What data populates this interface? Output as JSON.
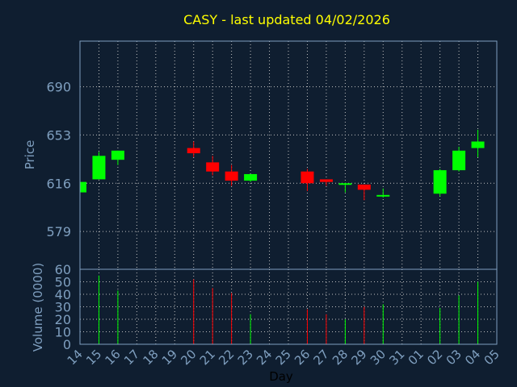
{
  "chart_data": {
    "type": "candlestick",
    "title": "CASY - last updated 04/02/2026",
    "xlabel": "Day",
    "price_panel": {
      "ylabel": "Price",
      "yticks": [
        579,
        616,
        653,
        690
      ],
      "ylim": [
        550,
        725
      ]
    },
    "volume_panel": {
      "ylabel": "Volume (0000)",
      "yticks": [
        0,
        10,
        20,
        30,
        40,
        50,
        60
      ],
      "ylim": [
        0,
        60
      ]
    },
    "x_ticks": [
      "14",
      "15",
      "16",
      "17",
      "18",
      "19",
      "20",
      "21",
      "22",
      "23",
      "24",
      "25",
      "26",
      "27",
      "28",
      "29",
      "30",
      "31",
      "01",
      "02",
      "03",
      "04",
      "05"
    ],
    "candles": [
      {
        "day": "14",
        "open": 609,
        "close": 617,
        "high": 618,
        "low": 608,
        "volume": null
      },
      {
        "day": "15",
        "open": 619,
        "close": 637,
        "high": 640,
        "low": 619,
        "volume": 55
      },
      {
        "day": "16",
        "open": 634,
        "close": 641,
        "high": 641,
        "low": 630,
        "volume": 43
      },
      {
        "day": "20",
        "open": 643,
        "close": 639,
        "high": 648,
        "low": 636,
        "volume": 52
      },
      {
        "day": "21",
        "open": 632,
        "close": 625,
        "high": 637,
        "low": 622,
        "volume": 45
      },
      {
        "day": "22",
        "open": 625,
        "close": 618,
        "high": 630,
        "low": 614,
        "volume": 41
      },
      {
        "day": "23",
        "open": 618,
        "close": 623,
        "high": 623,
        "low": 617,
        "volume": 24
      },
      {
        "day": "26",
        "open": 625,
        "close": 616,
        "high": 627,
        "low": 610,
        "volume": 28
      },
      {
        "day": "27",
        "open": 619,
        "close": 617,
        "high": 619,
        "low": 614,
        "volume": 24
      },
      {
        "day": "28",
        "open": 615,
        "close": 616,
        "high": 616,
        "low": 609,
        "volume": 20
      },
      {
        "day": "29",
        "open": 615,
        "close": 611,
        "high": 615,
        "low": 603,
        "volume": 30
      },
      {
        "day": "30",
        "open": 606,
        "close": 607,
        "high": 612,
        "low": 605,
        "volume": 32
      },
      {
        "day": "02",
        "open": 608,
        "close": 626,
        "high": 627,
        "low": 606,
        "volume": 29
      },
      {
        "day": "03",
        "open": 626,
        "close": 641,
        "high": 644,
        "low": 625,
        "volume": 39
      },
      {
        "day": "04",
        "open": 643,
        "close": 648,
        "high": 657,
        "low": 636,
        "volume": 50
      }
    ],
    "colors": {
      "up": "#00ff00",
      "down": "#ff0000",
      "background": "#0f1e30",
      "title": "#ffff00",
      "axis_text": "#7f9fbf",
      "frame": "#7f9fbf",
      "grid": "#c0c0c0"
    },
    "grid": true
  }
}
